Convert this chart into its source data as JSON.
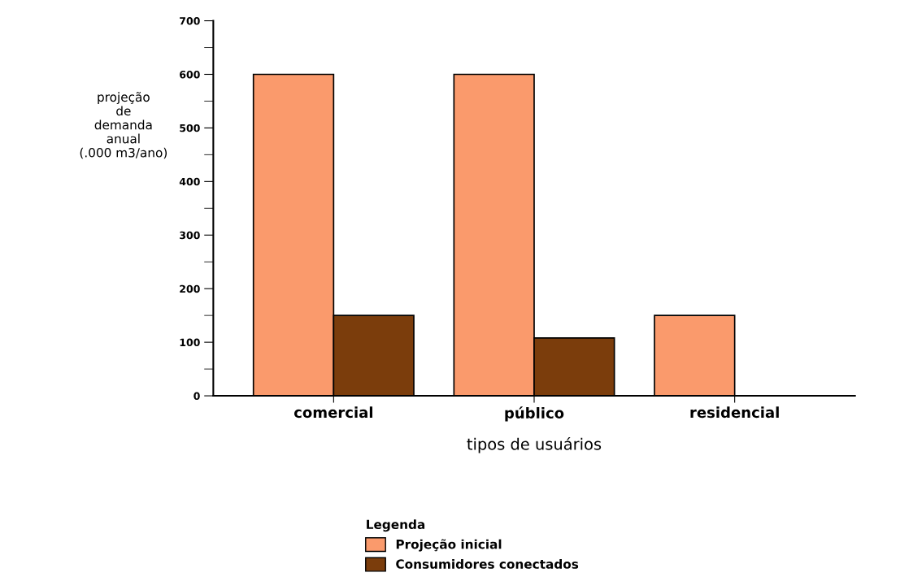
{
  "chart_data": {
    "type": "bar",
    "xlabel": "tipos de usuários",
    "ylabel": "projeção\nde\ndemanda\nanual\n(.000 m3/ano)",
    "categories": [
      "comercial",
      "público",
      "residencial"
    ],
    "series": [
      {
        "name": "Projeção inicial",
        "color": "#fa9a6c",
        "values": [
          600,
          600,
          150
        ]
      },
      {
        "name": "Consumidores conectados",
        "color": "#7b3d0c",
        "values": [
          150,
          108,
          null
        ]
      }
    ],
    "ylim": [
      0,
      700
    ],
    "yticks": [
      0,
      100,
      200,
      300,
      400,
      500,
      600,
      700
    ],
    "legend": "bottom",
    "legend_title": "Legenda",
    "grid": false
  }
}
